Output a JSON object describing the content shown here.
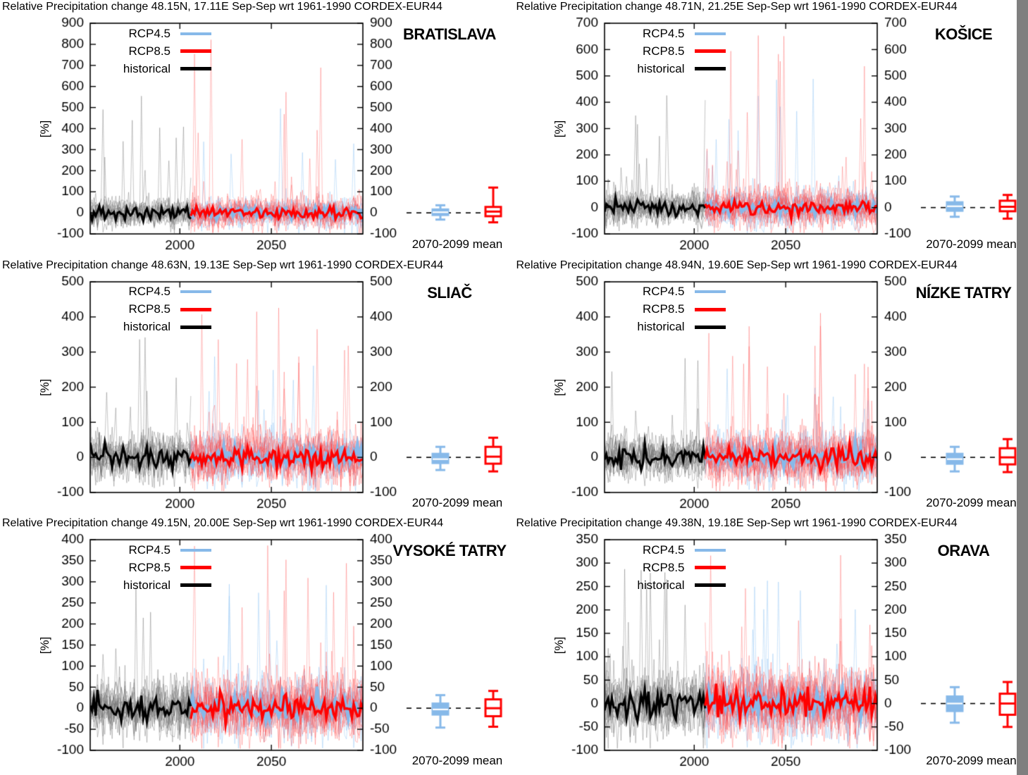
{
  "page": {
    "background": "#ffffff",
    "scrollbar_color": "#7f7f7f"
  },
  "chart_data": [
    {
      "type": "line",
      "title": "Relative Precipitation change 48.15N, 17.11E Sep-Sep wrt 1961-1990 CORDEX-EUR44",
      "location": "BRATISLAVA",
      "ylabel": "[%]",
      "xlabel": "",
      "ylim": [
        -100,
        900
      ],
      "ytick_step": 100,
      "xlim": [
        1951,
        2100
      ],
      "xticks": [
        2000,
        2050
      ],
      "split_year": 2006,
      "grid": false,
      "legend_position": "top-left-inside",
      "series": [
        {
          "name": "RCP4.5",
          "color": "#87b9e9",
          "member_color": "rgba(150,200,245,0.55)",
          "members": 10,
          "mean_width": 4.5,
          "swatch_h": 4,
          "spike_max": 500,
          "spike_p": 0.012
        },
        {
          "name": "RCP8.5",
          "color": "#ff0000",
          "member_color": "rgba(255,70,70,0.42)",
          "members": 14,
          "mean_width": 3.5,
          "swatch_h": 5,
          "spike_max": 830,
          "spike_p": 0.02
        },
        {
          "name": "historical",
          "color": "#000000",
          "member_color": "rgba(110,110,110,0.50)",
          "members": 16,
          "mean_width": 3.2,
          "swatch_h": 5,
          "spike_max": 560,
          "spike_p": 0.015
        }
      ],
      "boxplot": {
        "label": "2070-2099 mean",
        "rcp45": {
          "whisker_low": -32,
          "q1": -10,
          "median": 3,
          "q3": 16,
          "whisker_high": 36
        },
        "rcp85": {
          "whisker_low": -45,
          "q1": -16,
          "median": 6,
          "q3": 28,
          "whisker_high": 120
        }
      },
      "seed": 11
    },
    {
      "type": "line",
      "title": "Relative Precipitation change 48.71N, 21.25E Sep-Sep wrt 1961-1990 CORDEX-EUR44",
      "location": "KOŠICE",
      "ylabel": "[%]",
      "xlabel": "",
      "ylim": [
        -100,
        700
      ],
      "ytick_step": 100,
      "xlim": [
        1951,
        2100
      ],
      "xticks": [
        2000,
        2050
      ],
      "split_year": 2006,
      "grid": false,
      "legend_position": "top-left-inside",
      "series": [
        {
          "name": "RCP4.5",
          "color": "#87b9e9",
          "member_color": "rgba(150,200,245,0.55)",
          "members": 10,
          "mean_width": 4.5,
          "swatch_h": 4,
          "spike_max": 490,
          "spike_p": 0.012
        },
        {
          "name": "RCP8.5",
          "color": "#ff0000",
          "member_color": "rgba(255,70,70,0.42)",
          "members": 14,
          "mean_width": 3.5,
          "swatch_h": 5,
          "spike_max": 660,
          "spike_p": 0.02
        },
        {
          "name": "historical",
          "color": "#000000",
          "member_color": "rgba(110,110,110,0.50)",
          "members": 16,
          "mean_width": 3.2,
          "swatch_h": 5,
          "spike_max": 430,
          "spike_p": 0.015
        }
      ],
      "boxplot": {
        "label": "2070-2099 mean",
        "rcp45": {
          "whisker_low": -35,
          "q1": -12,
          "median": 5,
          "q3": 20,
          "whisker_high": 42
        },
        "rcp85": {
          "whisker_low": -42,
          "q1": -14,
          "median": 3,
          "q3": 26,
          "whisker_high": 48
        }
      },
      "seed": 22
    },
    {
      "type": "line",
      "title": "Relative Precipitation change 48.63N, 19.13E Sep-Sep wrt 1961-1990 CORDEX-EUR44",
      "location": "SLIAČ",
      "ylabel": "[%]",
      "xlabel": "",
      "ylim": [
        -100,
        500
      ],
      "ytick_step": 100,
      "xlim": [
        1951,
        2100
      ],
      "xticks": [
        2000,
        2050
      ],
      "split_year": 2006,
      "grid": false,
      "legend_position": "top-left-inside",
      "series": [
        {
          "name": "RCP4.5",
          "color": "#87b9e9",
          "member_color": "rgba(150,200,245,0.55)",
          "members": 10,
          "mean_width": 4.5,
          "swatch_h": 4,
          "spike_max": 290,
          "spike_p": 0.012
        },
        {
          "name": "RCP8.5",
          "color": "#ff0000",
          "member_color": "rgba(255,70,70,0.42)",
          "members": 14,
          "mean_width": 3.5,
          "swatch_h": 5,
          "spike_max": 430,
          "spike_p": 0.02
        },
        {
          "name": "historical",
          "color": "#000000",
          "member_color": "rgba(110,110,110,0.50)",
          "members": 16,
          "mean_width": 3.2,
          "swatch_h": 5,
          "spike_max": 345,
          "spike_p": 0.015
        }
      ],
      "boxplot": {
        "label": "2070-2099 mean",
        "rcp45": {
          "whisker_low": -36,
          "q1": -16,
          "median": -5,
          "q3": 10,
          "whisker_high": 30
        },
        "rcp85": {
          "whisker_low": -40,
          "q1": -18,
          "median": 2,
          "q3": 30,
          "whisker_high": 56
        }
      },
      "seed": 33
    },
    {
      "type": "line",
      "title": "Relative Precipitation change 48.94N, 19.60E Sep-Sep wrt 1961-1990 CORDEX-EUR44",
      "location": "NÍZKE TATRY",
      "ylabel": "[%]",
      "xlabel": "",
      "ylim": [
        -100,
        500
      ],
      "ytick_step": 100,
      "xlim": [
        1951,
        2100
      ],
      "xticks": [
        2000,
        2050
      ],
      "split_year": 2006,
      "grid": false,
      "legend_position": "top-left-inside",
      "series": [
        {
          "name": "RCP4.5",
          "color": "#87b9e9",
          "member_color": "rgba(150,200,245,0.55)",
          "members": 10,
          "mean_width": 4.5,
          "swatch_h": 4,
          "spike_max": 255,
          "spike_p": 0.012
        },
        {
          "name": "RCP8.5",
          "color": "#ff0000",
          "member_color": "rgba(255,70,70,0.42)",
          "members": 14,
          "mean_width": 3.5,
          "swatch_h": 5,
          "spike_max": 415,
          "spike_p": 0.02
        },
        {
          "name": "historical",
          "color": "#000000",
          "member_color": "rgba(110,110,110,0.50)",
          "members": 16,
          "mean_width": 3.2,
          "swatch_h": 5,
          "spike_max": 285,
          "spike_p": 0.015
        }
      ],
      "boxplot": {
        "label": "2070-2099 mean",
        "rcp45": {
          "whisker_low": -40,
          "q1": -18,
          "median": -5,
          "q3": 10,
          "whisker_high": 30
        },
        "rcp85": {
          "whisker_low": -42,
          "q1": -20,
          "median": 0,
          "q3": 26,
          "whisker_high": 52
        }
      },
      "seed": 44
    },
    {
      "type": "line",
      "title": "Relative Precipitation change 49.15N, 20.00E Sep-Sep wrt 1961-1990 CORDEX-EUR44",
      "location": "VYSOKÉ TATRY",
      "ylabel": "[%]",
      "xlabel": "",
      "ylim": [
        -100,
        400
      ],
      "ytick_step": 50,
      "xlim": [
        1951,
        2100
      ],
      "xticks": [
        2000,
        2050
      ],
      "split_year": 2006,
      "grid": false,
      "legend_position": "top-left-inside",
      "series": [
        {
          "name": "RCP4.5",
          "color": "#87b9e9",
          "member_color": "rgba(150,200,245,0.55)",
          "members": 10,
          "mean_width": 4.5,
          "swatch_h": 4,
          "spike_max": 295,
          "spike_p": 0.012
        },
        {
          "name": "RCP8.5",
          "color": "#ff0000",
          "member_color": "rgba(255,70,70,0.42)",
          "members": 14,
          "mean_width": 3.5,
          "swatch_h": 5,
          "spike_max": 390,
          "spike_p": 0.02
        },
        {
          "name": "historical",
          "color": "#000000",
          "member_color": "rgba(110,110,110,0.50)",
          "members": 16,
          "mean_width": 3.2,
          "swatch_h": 5,
          "spike_max": 290,
          "spike_p": 0.015
        }
      ],
      "boxplot": {
        "label": "2070-2099 mean",
        "rcp45": {
          "whisker_low": -46,
          "q1": -15,
          "median": -3,
          "q3": 11,
          "whisker_high": 31
        },
        "rcp85": {
          "whisker_low": -44,
          "q1": -19,
          "median": 0,
          "q3": 21,
          "whisker_high": 41
        }
      },
      "seed": 55
    },
    {
      "type": "line",
      "title": "Relative Precipitation change 49.38N, 19.18E Sep-Sep wrt 1961-1990 CORDEX-EUR44",
      "location": "ORAVA",
      "ylabel": "[%]",
      "xlabel": "",
      "ylim": [
        -100,
        350
      ],
      "ytick_step": 50,
      "xlim": [
        1951,
        2100
      ],
      "xticks": [
        2000,
        2050
      ],
      "split_year": 2006,
      "grid": false,
      "legend_position": "top-left-inside",
      "series": [
        {
          "name": "RCP4.5",
          "color": "#87b9e9",
          "member_color": "rgba(150,200,245,0.55)",
          "members": 10,
          "mean_width": 4.5,
          "swatch_h": 4,
          "spike_max": 265,
          "spike_p": 0.012
        },
        {
          "name": "RCP8.5",
          "color": "#ff0000",
          "member_color": "rgba(255,70,70,0.42)",
          "members": 14,
          "mean_width": 3.5,
          "swatch_h": 5,
          "spike_max": 320,
          "spike_p": 0.02
        },
        {
          "name": "historical",
          "color": "#000000",
          "member_color": "rgba(110,110,110,0.50)",
          "members": 16,
          "mean_width": 3.2,
          "swatch_h": 5,
          "spike_max": 290,
          "spike_p": 0.015
        }
      ],
      "boxplot": {
        "label": "2070-2099 mean",
        "rcp45": {
          "whisker_low": -41,
          "q1": -16,
          "median": 0,
          "q3": 15,
          "whisker_high": 35
        },
        "rcp85": {
          "whisker_low": -50,
          "q1": -24,
          "median": 0,
          "q3": 21,
          "whisker_high": 46
        }
      },
      "seed": 66
    }
  ]
}
